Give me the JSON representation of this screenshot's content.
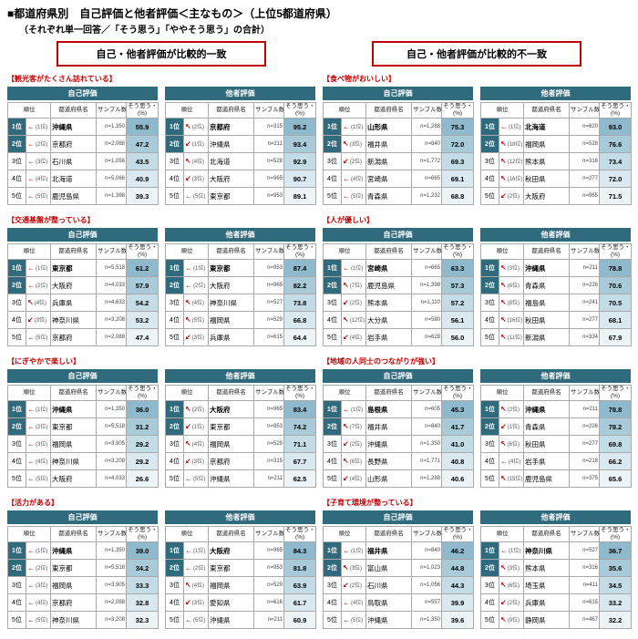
{
  "title": "■都道府県別　自己評価と他者評価＜主なもの＞（上位5都道府県）",
  "subtitle": "（それぞれ単一回答／「そう思う」「ややそう思う」の合計）",
  "group_headers": {
    "left": "自己・他者評価が比較的一致",
    "right": "自己・他者評価が比較的不一致"
  },
  "eval_labels": {
    "self": "自己評価",
    "other": "他者評価"
  },
  "table_headers": {
    "rank": "順位",
    "prefecture": "都道府県名",
    "sample": "サンプル数",
    "agree": "そう思う・計",
    "unit": "(%)"
  },
  "colors": {
    "accent_red": "#c00000",
    "teal": "#2f6a7d",
    "pct_shades": [
      "#8fb9cd",
      "#a9cbd9",
      "#c3dce6",
      "#d9e9ef",
      "#ecf4f8"
    ]
  },
  "sections": [
    {
      "id": "tourists",
      "label": "【観光客がたくさん訪れている】",
      "column": "left",
      "self": [
        [
          "1位",
          "←",
          "(1位)",
          "沖縄県",
          "n=1,350",
          "55.9"
        ],
        [
          "2位",
          "←",
          "(2位)",
          "京都府",
          "n=2,088",
          "47.2"
        ],
        [
          "3位",
          "←",
          "(3位)",
          "石川県",
          "n=1,056",
          "43.5"
        ],
        [
          "4位",
          "←",
          "(4位)",
          "北海道",
          "n=5,066",
          "40.9"
        ],
        [
          "5位",
          "←",
          "(5位)",
          "鹿児島県",
          "n=1,398",
          "39.3"
        ]
      ],
      "other": [
        [
          "1位",
          "↖",
          "(2位)",
          "京都府",
          "n=315",
          "95.2"
        ],
        [
          "2位",
          "↙",
          "(1位)",
          "沖縄県",
          "n=211",
          "93.4"
        ],
        [
          "3位",
          "↖",
          "(4位)",
          "北海道",
          "n=528",
          "92.9"
        ],
        [
          "4位",
          "↙",
          "(3位)",
          "大阪府",
          "n=965",
          "90.7"
        ],
        [
          "5位",
          "←",
          "(5位)",
          "東京都",
          "n=953",
          "89.1"
        ]
      ]
    },
    {
      "id": "transport",
      "label": "【交通基盤が整っている】",
      "column": "left",
      "self": [
        [
          "1位",
          "←",
          "(1位)",
          "東京都",
          "n=5,518",
          "61.2"
        ],
        [
          "2位",
          "←",
          "(2位)",
          "大阪府",
          "n=4,033",
          "57.9"
        ],
        [
          "3位",
          "↖",
          "(4位)",
          "兵庫県",
          "n=4,633",
          "54.2"
        ],
        [
          "4位",
          "↙",
          "(3位)",
          "神奈川県",
          "n=3,208",
          "53.2"
        ],
        [
          "5位",
          "←",
          "(5位)",
          "京都府",
          "n=2,088",
          "47.4"
        ]
      ],
      "other": [
        [
          "1位",
          "←",
          "(1位)",
          "東京都",
          "n=953",
          "87.4"
        ],
        [
          "2位",
          "←",
          "(2位)",
          "大阪府",
          "n=965",
          "82.2"
        ],
        [
          "3位",
          "↖",
          "(4位)",
          "神奈川県",
          "n=527",
          "73.8"
        ],
        [
          "4位",
          "↖",
          "(5位)",
          "福岡県",
          "n=529",
          "66.8"
        ],
        [
          "5位",
          "↙",
          "(3位)",
          "兵庫県",
          "n=615",
          "64.4"
        ]
      ]
    },
    {
      "id": "lively",
      "label": "【にぎやかで楽しい】",
      "column": "left",
      "self": [
        [
          "1位",
          "←",
          "(1位)",
          "沖縄県",
          "n=1,350",
          "36.0"
        ],
        [
          "2位",
          "←",
          "(2位)",
          "東京都",
          "n=5,518",
          "31.2"
        ],
        [
          "3位",
          "←",
          "(3位)",
          "福岡県",
          "n=3,905",
          "29.2"
        ],
        [
          "4位",
          "←",
          "(4位)",
          "神奈川県",
          "n=3,208",
          "29.2"
        ],
        [
          "5位",
          "←",
          "(5位)",
          "大阪府",
          "n=4,033",
          "26.6"
        ]
      ],
      "other": [
        [
          "1位",
          "↖",
          "(2位)",
          "大阪府",
          "n=965",
          "83.4"
        ],
        [
          "2位",
          "↙",
          "(1位)",
          "東京都",
          "n=953",
          "74.2"
        ],
        [
          "3位",
          "↖",
          "(4位)",
          "福岡県",
          "n=529",
          "71.1"
        ],
        [
          "4位",
          "↙",
          "(3位)",
          "京都府",
          "n=315",
          "67.7"
        ],
        [
          "5位",
          "←",
          "(5位)",
          "沖縄県",
          "n=211",
          "62.5"
        ]
      ]
    },
    {
      "id": "vitality",
      "label": "【活力がある】",
      "column": "left",
      "self": [
        [
          "1位",
          "←",
          "(1位)",
          "沖縄県",
          "n=1,350",
          "39.0"
        ],
        [
          "2位",
          "←",
          "(2位)",
          "東京都",
          "n=5,518",
          "34.2"
        ],
        [
          "3位",
          "←",
          "(3位)",
          "福岡県",
          "n=3,905",
          "33.3"
        ],
        [
          "4位",
          "←",
          "(4位)",
          "京都府",
          "n=2,088",
          "32.8"
        ],
        [
          "5位",
          "←",
          "(5位)",
          "神奈川県",
          "n=3,208",
          "32.3"
        ]
      ],
      "other": [
        [
          "1位",
          "←",
          "(1位)",
          "大阪府",
          "n=965",
          "84.3"
        ],
        [
          "2位",
          "←",
          "(2位)",
          "東京都",
          "n=953",
          "81.8"
        ],
        [
          "3位",
          "↖",
          "(4位)",
          "福岡県",
          "n=529",
          "63.9"
        ],
        [
          "4位",
          "↙",
          "(3位)",
          "愛知県",
          "n=616",
          "61.7"
        ],
        [
          "5位",
          "←",
          "(5位)",
          "沖縄県",
          "n=211",
          "60.9"
        ]
      ]
    },
    {
      "id": "food",
      "label": "【食べ物がおいしい】",
      "column": "right",
      "self": [
        [
          "1位",
          "←",
          "(1位)",
          "山形県",
          "n=1,288",
          "75.3"
        ],
        [
          "2位",
          "↖",
          "(3位)",
          "福井県",
          "n=840",
          "72.0"
        ],
        [
          "3位",
          "↙",
          "(2位)",
          "新潟県",
          "n=1,772",
          "69.3"
        ],
        [
          "4位",
          "←",
          "(4位)",
          "宮崎県",
          "n=665",
          "69.1"
        ],
        [
          "5位",
          "←",
          "(5位)",
          "青森県",
          "n=1,232",
          "68.8"
        ]
      ],
      "other": [
        [
          "1位",
          "←",
          "(1位)",
          "北海道",
          "n=620",
          "93.0"
        ],
        [
          "2位",
          "↖",
          "(18位)",
          "福岡県",
          "n=528",
          "76.6"
        ],
        [
          "3位",
          "↖",
          "(12位)",
          "熊本県",
          "n=316",
          "73.4"
        ],
        [
          "4位",
          "↖",
          "(16位)",
          "秋田県",
          "n=277",
          "72.0"
        ],
        [
          "5位",
          "↙",
          "(2位)",
          "大阪府",
          "n=965",
          "71.5"
        ]
      ]
    },
    {
      "id": "kind-people",
      "label": "【人が優しい】",
      "column": "right",
      "self": [
        [
          "1位",
          "←",
          "(1位)",
          "宮崎県",
          "n=665",
          "63.3"
        ],
        [
          "2位",
          "↖",
          "(7位)",
          "鹿児島県",
          "n=1,398",
          "57.3"
        ],
        [
          "3位",
          "↙",
          "(2位)",
          "熊本県",
          "n=1,110",
          "57.2"
        ],
        [
          "4位",
          "↖",
          "(12位)",
          "大分県",
          "n=580",
          "56.1"
        ],
        [
          "5位",
          "↙",
          "(4位)",
          "岩手県",
          "n=628",
          "56.0"
        ]
      ],
      "other": [
        [
          "1位",
          "↖",
          "(3位)",
          "沖縄県",
          "n=211",
          "78.8"
        ],
        [
          "2位",
          "↖",
          "(6位)",
          "青森県",
          "n=226",
          "70.6"
        ],
        [
          "3位",
          "↖",
          "(8位)",
          "福島県",
          "n=241",
          "70.5"
        ],
        [
          "4位",
          "↖",
          "(16位)",
          "秋田県",
          "n=277",
          "68.1"
        ],
        [
          "5位",
          "↖",
          "(11位)",
          "新潟県",
          "n=334",
          "67.9"
        ]
      ]
    },
    {
      "id": "community",
      "label": "【地域の人同士のつながりが強い】",
      "column": "right",
      "self": [
        [
          "1位",
          "←",
          "(1位)",
          "島根県",
          "n=605",
          "45.3"
        ],
        [
          "2位",
          "↖",
          "(7位)",
          "福井県",
          "n=840",
          "41.7"
        ],
        [
          "3位",
          "↙",
          "(2位)",
          "沖縄県",
          "n=1,350",
          "41.0"
        ],
        [
          "4位",
          "↖",
          "(6位)",
          "長野県",
          "n=1,771",
          "40.8"
        ],
        [
          "5位",
          "↙",
          "(4位)",
          "山形県",
          "n=1,288",
          "40.6"
        ]
      ],
      "other": [
        [
          "1位",
          "↖",
          "(2位)",
          "沖縄県",
          "n=211",
          "78.8"
        ],
        [
          "2位",
          "↙",
          "(1位)",
          "青森県",
          "n=226",
          "78.2"
        ],
        [
          "3位",
          "↖",
          "(6位)",
          "秋田県",
          "n=277",
          "69.8"
        ],
        [
          "4位",
          "←",
          "(4位)",
          "岩手県",
          "n=218",
          "66.2"
        ],
        [
          "5位",
          "↖",
          "(15位)",
          "鹿児島県",
          "n=375",
          "65.6"
        ]
      ]
    },
    {
      "id": "childcare",
      "label": "【子育て環境が整っている】",
      "column": "right",
      "self": [
        [
          "1位",
          "←",
          "(1位)",
          "福井県",
          "n=840",
          "46.2"
        ],
        [
          "2位",
          "↖",
          "(3位)",
          "富山県",
          "n=1,023",
          "44.8"
        ],
        [
          "3位",
          "↙",
          "(2位)",
          "石川県",
          "n=1,056",
          "44.3"
        ],
        [
          "4位",
          "←",
          "(4位)",
          "鳥取県",
          "n=557",
          "39.9"
        ],
        [
          "5位",
          "←",
          "(5位)",
          "沖縄県",
          "n=1,350",
          "39.6"
        ]
      ],
      "other": [
        [
          "1位",
          "←",
          "(1位)",
          "神奈川県",
          "n=527",
          "36.7"
        ],
        [
          "2位",
          "↖",
          "(3位)",
          "熊本県",
          "n=316",
          "35.6"
        ],
        [
          "3位",
          "↖",
          "(6位)",
          "埼玉県",
          "n=411",
          "34.5"
        ],
        [
          "4位",
          "↙",
          "(2位)",
          "兵庫県",
          "n=615",
          "33.2"
        ],
        [
          "5位",
          "↖",
          "(9位)",
          "静岡県",
          "n=467",
          "32.2"
        ]
      ]
    }
  ]
}
